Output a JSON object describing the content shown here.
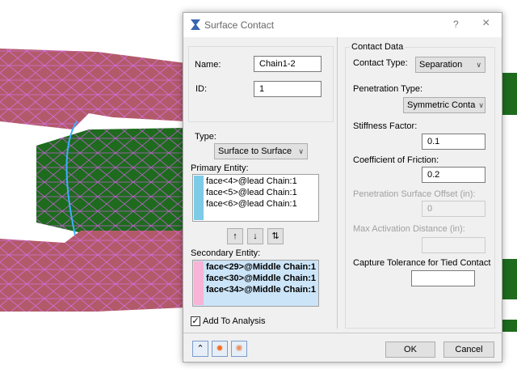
{
  "dialog": {
    "title": "Surface Contact",
    "help_label": "?",
    "close_label": "×",
    "name_label": "Name:",
    "name_value": "Chain1-2",
    "id_label": "ID:",
    "id_value": "1",
    "type_label": "Type:",
    "type_value": "Surface to Surface",
    "primary_label": "Primary Entity:",
    "primary_items": [
      "face<4>@lead Chain:1",
      "face<5>@lead Chain:1",
      "face<6>@lead Chain:1"
    ],
    "primary_color": "#7ecbe8",
    "move_buttons": [
      "↑",
      "↓",
      "⇅"
    ],
    "secondary_label": "Secondary Entity:",
    "secondary_items": [
      "face<29>@Middle Chain:1",
      "face<30>@Middle Chain:1",
      "face<34>@Middle Chain:1"
    ],
    "secondary_color": "#f7b4d6",
    "add_to_analysis_label": "Add To Analysis",
    "add_to_analysis_checked": true,
    "ok_label": "OK",
    "cancel_label": "Cancel",
    "tool_icons": [
      "collapse-icon",
      "highlight-icon",
      "highlight-all-icon"
    ]
  },
  "contact_data": {
    "group_label": "Contact Data",
    "contact_type_label": "Contact Type:",
    "contact_type_value": "Separation",
    "penetration_type_label": "Penetration Type:",
    "penetration_type_value": "Symmetric Conta",
    "stiffness_label": "Stiffness Factor:",
    "stiffness_value": "0.1",
    "friction_label": "Coefficient of Friction:",
    "friction_value": "0.2",
    "offset_label": "Penetration Surface Offset (in):",
    "offset_value": "0",
    "max_activation_label": "Max Activation Distance (in):",
    "max_activation_value": "",
    "capture_label": "Capture Tolerance for Tied Contact",
    "capture_value": ""
  },
  "colors": {
    "pink_mesh": "#b35a6a",
    "green_mesh": "#1e6b1e",
    "mesh_lines": "#d070e0"
  }
}
